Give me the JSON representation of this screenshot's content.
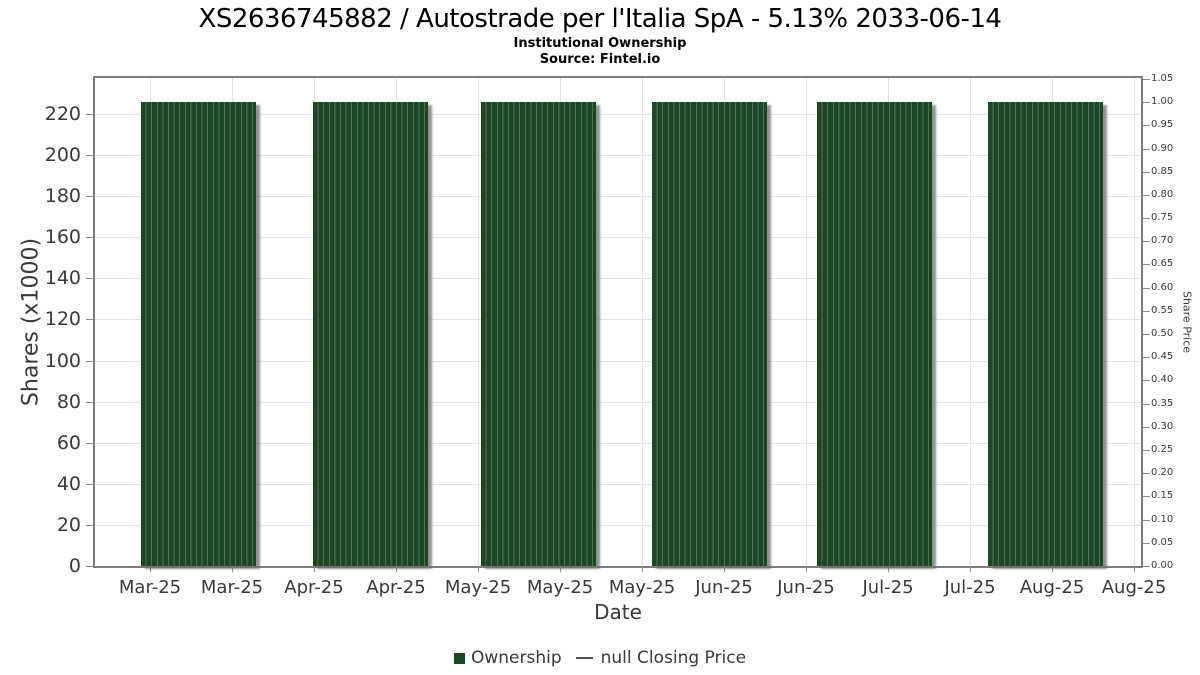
{
  "header": {
    "title": "XS2636745882 / Autostrade per l'Italia SpA - 5.13% 2033-06-14",
    "subtitle": "Institutional Ownership",
    "source": "Source: Fintel.io"
  },
  "chart_data": {
    "type": "bar",
    "title": "XS2636745882 / Autostrade per l'Italia SpA - 5.13% 2033-06-14",
    "subtitle": "Institutional Ownership",
    "source": "Source: Fintel.io",
    "xlabel": "Date",
    "ylabel": "Shares (x1000)",
    "y2label": "Share Price",
    "categories": [
      "Mar-25",
      "Apr-25",
      "May-25",
      "Jun-25",
      "Jul-25",
      "Aug-25"
    ],
    "series": [
      {
        "name": "Ownership",
        "type": "bar",
        "color": "#1c4723",
        "values": [
          226,
          226,
          226,
          226,
          226,
          226
        ]
      },
      {
        "name": "null Closing Price",
        "type": "line",
        "color": "#4c4c4c",
        "values": null
      }
    ],
    "stripe_color": "#52705a",
    "legend_dash_color": "#4c4c4c",
    "ylim": [
      0,
      237.5
    ],
    "y2lim": [
      0,
      1.052
    ],
    "y_ticks": [
      0,
      20,
      40,
      60,
      80,
      100,
      120,
      140,
      160,
      180,
      200,
      220
    ],
    "y2_ticks": [
      "0.00",
      "0.05",
      "0.10",
      "0.15",
      "0.20",
      "0.25",
      "0.30",
      "0.35",
      "0.40",
      "0.45",
      "0.50",
      "0.55",
      "0.60",
      "0.65",
      "0.70",
      "0.75",
      "0.80",
      "0.85",
      "0.90",
      "0.95",
      "1.00",
      "1.05"
    ],
    "x_tick_labels": [
      "Mar-25",
      "Mar-25",
      "Apr-25",
      "Apr-25",
      "May-25",
      "May-25",
      "May-25",
      "Jun-25",
      "Jun-25",
      "Jul-25",
      "Jul-25",
      "Aug-25",
      "Aug-25"
    ],
    "grid": true,
    "legend_position": "bottom"
  }
}
